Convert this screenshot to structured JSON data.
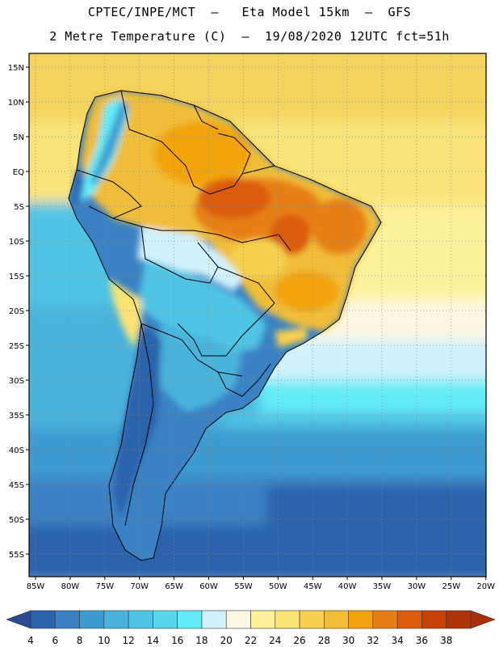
{
  "title": {
    "line1": "CPTEC/INPE/MCT  –   Eta Model 15km  –  GFS",
    "line2": "2 Metre Temperature (C)  –  19/08/2020 12UTC fct=51h"
  },
  "map": {
    "variable": "2 Metre Temperature",
    "units": "C",
    "lat_labels": [
      "15N",
      "10N",
      "5N",
      "EQ",
      "5S",
      "10S",
      "15S",
      "20S",
      "25S",
      "30S",
      "35S",
      "40S",
      "45S",
      "50S",
      "55S"
    ],
    "lon_labels": [
      "85W",
      "80W",
      "75W",
      "70W",
      "65W",
      "60W",
      "55W",
      "50W",
      "45W",
      "40W",
      "35W",
      "30W",
      "25W",
      "20W"
    ],
    "grid": "dotted"
  },
  "colorbar": {
    "levels": [
      "4",
      "6",
      "8",
      "10",
      "12",
      "14",
      "16",
      "18",
      "20",
      "22",
      "24",
      "26",
      "28",
      "30",
      "32",
      "34",
      "36",
      "38"
    ],
    "colors": [
      "#2c62ac",
      "#3a82c4",
      "#3c9bd0",
      "#49b3dc",
      "#4fc4e4",
      "#5ad6ec",
      "#64ecf8",
      "#d0f2fc",
      "#fef7e2",
      "#fdf29a",
      "#fae275",
      "#f6d050",
      "#f0bd38",
      "#f2a40e",
      "#e68016",
      "#dc5c0a",
      "#c74006",
      "#b03408"
    ],
    "low_arrow_color": "#2a4a92",
    "high_arrow_color": "#a83008"
  }
}
